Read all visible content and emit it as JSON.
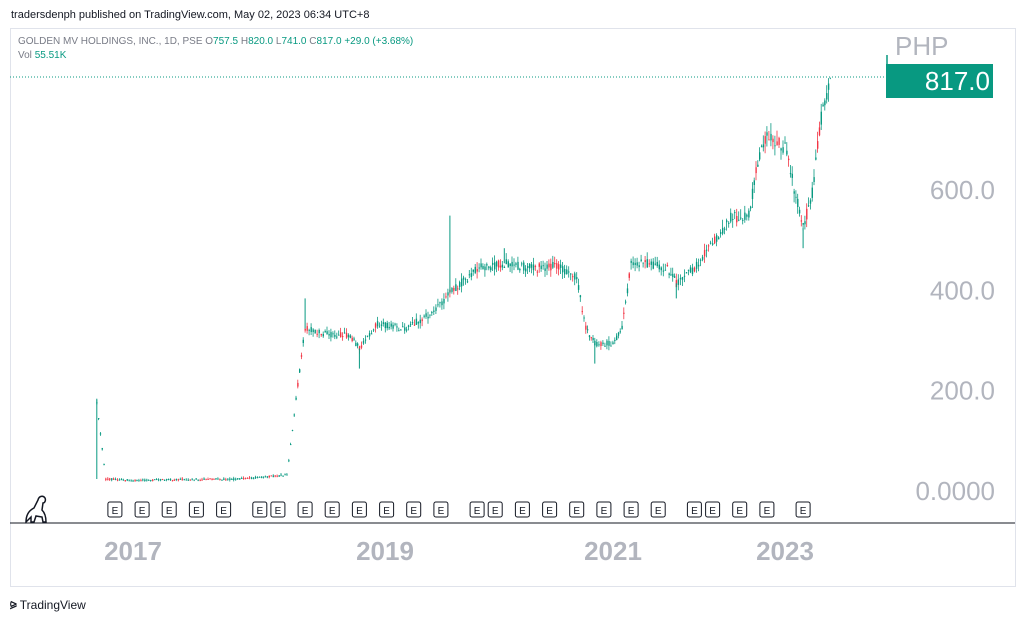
{
  "header": {
    "publisher": "tradersdenph published on TradingView.com, May 02, 2023 06:34 UTC+8"
  },
  "legend": {
    "symbol": "GOLDEN MV HOLDINGS, INC., 1D, PSE",
    "o_label": "O",
    "o": "757.5",
    "h_label": "H",
    "h": "820.0",
    "l_label": "L",
    "l": "741.0",
    "c_label": "C",
    "c": "817.0",
    "change": "+29.0 (+3.68%)",
    "vol_label": "Vol",
    "vol": "55.51K"
  },
  "price_axis": {
    "currency": "PHP",
    "last_price": "817.0",
    "ticks": [
      "600.0",
      "400.0",
      "200.0",
      "0.0000"
    ]
  },
  "footer": {
    "brand": "TradingView"
  },
  "colors": {
    "up": "#089981",
    "down": "#f23645",
    "axis_text": "#b2b5be",
    "last_price_bg": "#089981"
  },
  "chart_data": {
    "type": "candlestick",
    "x_ticks": [
      "2017",
      "2019",
      "2021",
      "2023"
    ],
    "y_ticks": [
      0,
      200,
      400,
      600
    ],
    "ylim": [
      0,
      900
    ],
    "last_price": 817.0,
    "earnings_marker_label": "E",
    "earnings_markers": [
      "2016-11",
      "2017-02",
      "2017-05",
      "2017-08",
      "2017-11",
      "2018-03",
      "2018-05",
      "2018-08",
      "2018-11",
      "2019-02",
      "2019-05",
      "2019-08",
      "2019-11",
      "2020-03",
      "2020-05",
      "2020-08",
      "2020-11",
      "2021-02",
      "2021-05",
      "2021-08",
      "2021-11",
      "2022-03",
      "2022-05",
      "2022-08",
      "2022-11",
      "2023-03"
    ],
    "series": [
      {
        "date": "2016-09",
        "close": 170,
        "low": 20,
        "high": 180
      },
      {
        "date": "2016-10",
        "close": 20
      },
      {
        "date": "2017-01",
        "close": 17
      },
      {
        "date": "2017-06",
        "close": 19
      },
      {
        "date": "2018-01",
        "close": 20
      },
      {
        "date": "2018-06",
        "close": 28
      },
      {
        "date": "2018-07",
        "close": 180
      },
      {
        "date": "2018-08",
        "close": 320,
        "high": 380
      },
      {
        "date": "2018-10",
        "close": 310
      },
      {
        "date": "2019-01",
        "close": 305
      },
      {
        "date": "2019-02",
        "close": 280,
        "low": 240
      },
      {
        "date": "2019-04",
        "close": 330
      },
      {
        "date": "2019-07",
        "close": 320
      },
      {
        "date": "2019-10",
        "close": 350
      },
      {
        "date": "2019-12",
        "close": 390,
        "high": 545
      },
      {
        "date": "2020-03",
        "close": 440
      },
      {
        "date": "2020-06",
        "close": 450,
        "high": 480
      },
      {
        "date": "2020-09",
        "close": 440
      },
      {
        "date": "2020-12",
        "close": 445
      },
      {
        "date": "2021-02",
        "close": 420
      },
      {
        "date": "2021-03",
        "close": 320
      },
      {
        "date": "2021-04",
        "close": 290,
        "low": 250
      },
      {
        "date": "2021-06",
        "close": 290
      },
      {
        "date": "2021-07",
        "close": 320
      },
      {
        "date": "2021-08",
        "close": 450
      },
      {
        "date": "2021-10",
        "close": 450
      },
      {
        "date": "2021-12",
        "close": 440
      },
      {
        "date": "2022-01",
        "close": 410,
        "low": 380
      },
      {
        "date": "2022-03",
        "close": 440
      },
      {
        "date": "2022-05",
        "close": 490
      },
      {
        "date": "2022-07",
        "close": 540
      },
      {
        "date": "2022-09",
        "close": 545
      },
      {
        "date": "2022-10",
        "close": 650
      },
      {
        "date": "2022-11",
        "close": 700
      },
      {
        "date": "2023-01",
        "close": 680
      },
      {
        "date": "2023-02",
        "close": 600
      },
      {
        "date": "2023-03",
        "close": 520,
        "low": 480
      },
      {
        "date": "2023-04",
        "close": 590
      },
      {
        "date": "2023-05",
        "close": 740
      },
      {
        "date": "2023-06",
        "close": 817,
        "high": 820
      }
    ]
  }
}
